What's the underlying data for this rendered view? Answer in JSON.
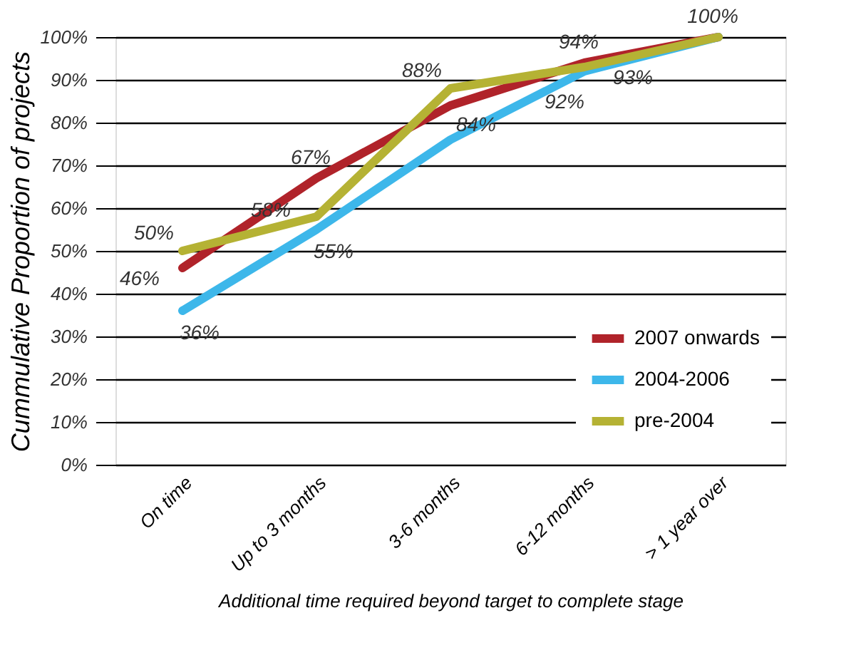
{
  "chart_data": {
    "type": "line",
    "xlabel": "Additional time required beyond target to complete stage",
    "ylabel": "Cummulative Proportion of projects",
    "categories": [
      "On time",
      "Up to 3 months",
      "3-6 months",
      "6-12 months",
      "> 1 year over"
    ],
    "series": [
      {
        "name": "2007 onwards",
        "color": "#b0232a",
        "values": [
          46,
          67,
          84,
          94,
          100
        ],
        "value_labels": [
          "46%",
          "67%",
          "84%",
          "94%",
          "100%"
        ]
      },
      {
        "name": "2004-2006",
        "color": "#3db7ea",
        "values": [
          36,
          55,
          76,
          92,
          100
        ],
        "value_labels": [
          "36%",
          "55%",
          null,
          "92%",
          null
        ]
      },
      {
        "name": "pre-2004",
        "color": "#b5b234",
        "values": [
          50,
          58,
          88,
          93,
          100
        ],
        "value_labels": [
          "50%",
          "58%",
          "88%",
          "93%",
          null
        ]
      }
    ],
    "ylim": [
      0,
      100
    ],
    "yticks": [
      {
        "value": 0,
        "label": "0%"
      },
      {
        "value": 10,
        "label": "10%"
      },
      {
        "value": 20,
        "label": "20%"
      },
      {
        "value": 30,
        "label": "30%"
      },
      {
        "value": 40,
        "label": "40%"
      },
      {
        "value": 50,
        "label": "50%"
      },
      {
        "value": 60,
        "label": "60%"
      },
      {
        "value": 70,
        "label": "70%"
      },
      {
        "value": 80,
        "label": "80%"
      },
      {
        "value": 90,
        "label": "90%"
      },
      {
        "value": 100,
        "label": "100%"
      }
    ],
    "grid": "y",
    "legend": "bottom right",
    "marker": "none",
    "line_style": "solid"
  }
}
